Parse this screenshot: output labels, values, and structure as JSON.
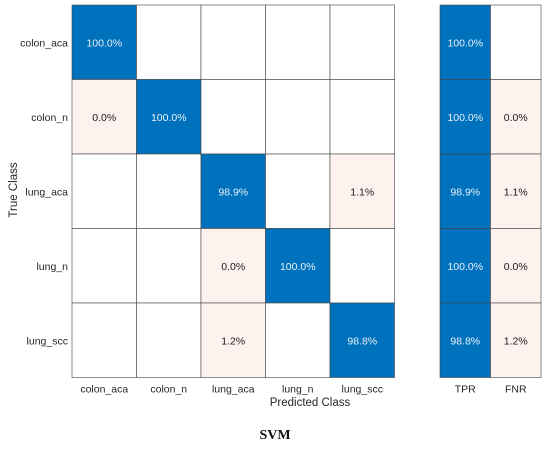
{
  "caption": "SVM",
  "chart_data": {
    "type": "heatmap",
    "title": "",
    "xlabel": "Predicted Class",
    "ylabel": "True Class",
    "classes": [
      "colon_aca",
      "colon_n",
      "lung_aca",
      "lung_n",
      "lung_scc"
    ],
    "cells": [
      [
        "100.0%",
        "",
        "",
        "",
        ""
      ],
      [
        "0.0%",
        "100.0%",
        "",
        "",
        ""
      ],
      [
        "",
        "",
        "98.9%",
        "",
        "1.1%"
      ],
      [
        "",
        "",
        "0.0%",
        "100.0%",
        ""
      ],
      [
        "",
        "",
        "1.2%",
        "",
        "98.8%"
      ]
    ],
    "values": [
      [
        100.0,
        null,
        null,
        null,
        null
      ],
      [
        0.0,
        100.0,
        null,
        null,
        null
      ],
      [
        null,
        null,
        98.9,
        null,
        1.1
      ],
      [
        null,
        null,
        0.0,
        100.0,
        null
      ],
      [
        null,
        null,
        1.2,
        null,
        98.8
      ]
    ],
    "summary_columns": [
      "TPR",
      "FNR"
    ],
    "summary_cells": [
      [
        "100.0%",
        ""
      ],
      [
        "100.0%",
        "0.0%"
      ],
      [
        "98.9%",
        "1.1%"
      ],
      [
        "100.0%",
        "0.0%"
      ],
      [
        "98.8%",
        "1.2%"
      ]
    ],
    "summary_values": [
      [
        100.0,
        null
      ],
      [
        100.0,
        0.0
      ],
      [
        98.9,
        1.1
      ],
      [
        100.0,
        0.0
      ],
      [
        98.8,
        1.2
      ]
    ],
    "colors": {
      "correct": "#0072bd",
      "error": "#fdf2ee",
      "empty": "#ffffff",
      "correct_text": "#e8f0f8",
      "error_text": "#1a1a1a",
      "grid": "#444444"
    }
  }
}
